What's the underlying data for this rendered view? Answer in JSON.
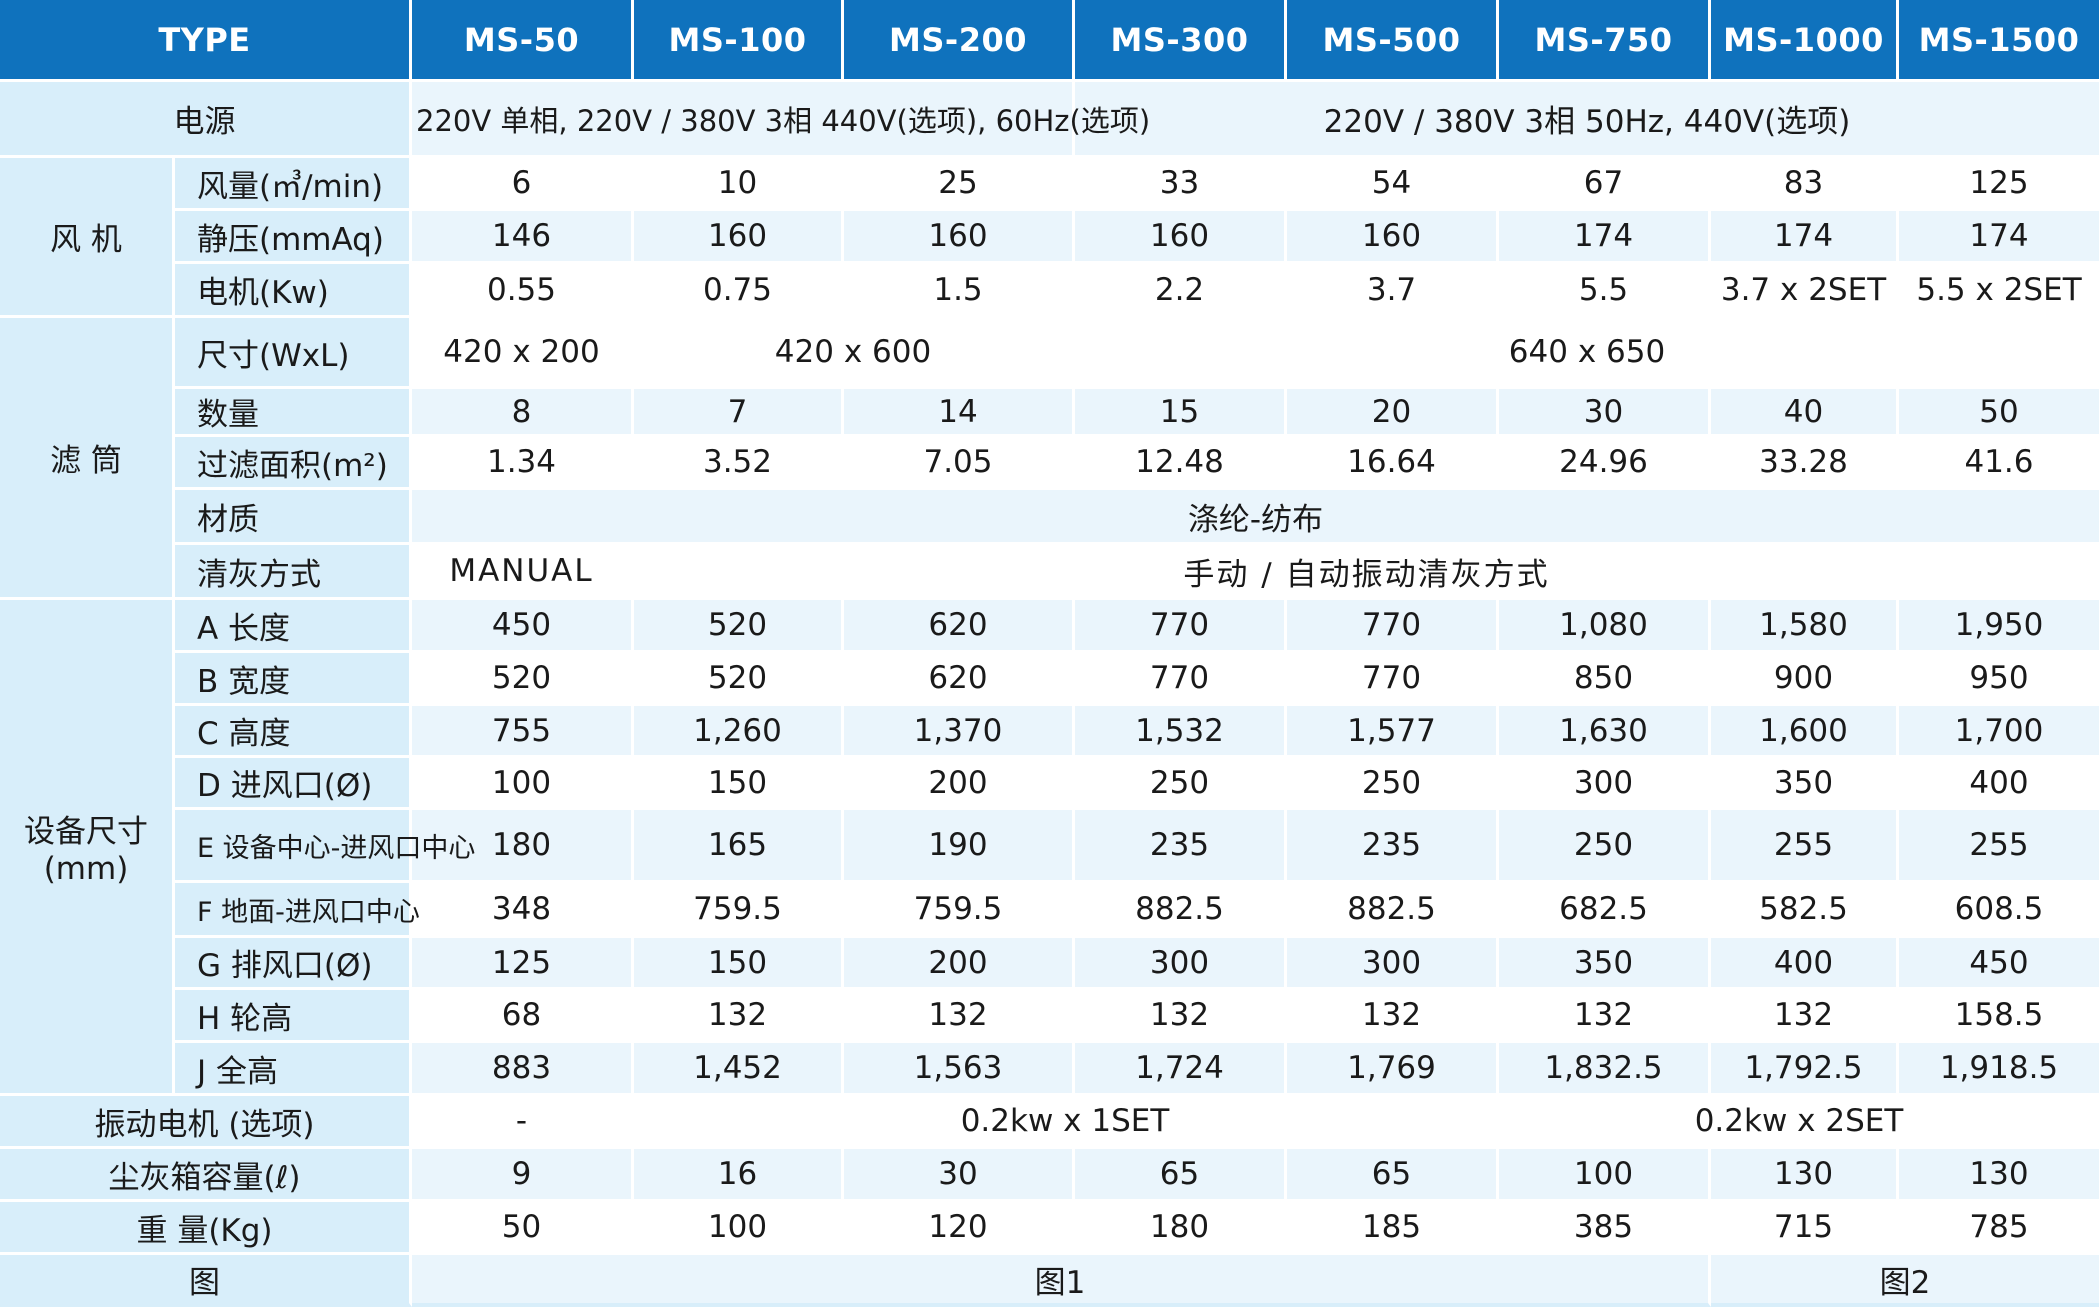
{
  "header": {
    "type_label": "TYPE",
    "models": [
      "MS-50",
      "MS-100",
      "MS-200",
      "MS-300",
      "MS-500",
      "MS-750",
      "MS-1000",
      "MS-1500"
    ]
  },
  "power": {
    "label": "电源",
    "value_a": "220V 单相, 220V / 380V 3相 440V(选项), 60Hz(选项)",
    "value_b": "220V / 380V 3相 50Hz, 440V(选项)"
  },
  "fan": {
    "group_label": "风 机",
    "rows": [
      {
        "label": "风量(㎥/min)",
        "values": [
          "6",
          "10",
          "25",
          "33",
          "54",
          "67",
          "83",
          "125"
        ]
      },
      {
        "label": "静压(mmAq)",
        "values": [
          "146",
          "160",
          "160",
          "160",
          "160",
          "174",
          "174",
          "174"
        ]
      },
      {
        "label": "电机(Kw)",
        "values": [
          "0.55",
          "0.75",
          "1.5",
          "2.2",
          "3.7",
          "5.5",
          "3.7 x 2SET",
          "5.5 x 2SET"
        ]
      }
    ]
  },
  "filter": {
    "group_label": "滤 筒",
    "size_label": "尺寸(WxL)",
    "size_values": [
      "420 x 200",
      "420 x 600",
      "640 x 650"
    ],
    "count_label": "数量",
    "count_values": [
      "8",
      "7",
      "14",
      "15",
      "20",
      "30",
      "40",
      "50"
    ],
    "area_label": "过滤面积(m²)",
    "area_values": [
      "1.34",
      "3.52",
      "7.05",
      "12.48",
      "16.64",
      "24.96",
      "33.28",
      "41.6"
    ],
    "material_label": "材质",
    "material_value": "涤纶-纺布",
    "cleaning_label": "清灰方式",
    "cleaning_values": [
      "MANUAL",
      "手动 / 自动振动清灰方式"
    ]
  },
  "dimensions": {
    "group_label": "设备尺寸",
    "group_unit": "(mm)",
    "rows": [
      {
        "label": "A 长度",
        "values": [
          "450",
          "520",
          "620",
          "770",
          "770",
          "1,080",
          "1,580",
          "1,950"
        ]
      },
      {
        "label": "B 宽度",
        "values": [
          "520",
          "520",
          "620",
          "770",
          "770",
          "850",
          "900",
          "950"
        ]
      },
      {
        "label": "C 高度",
        "values": [
          "755",
          "1,260",
          "1,370",
          "1,532",
          "1,577",
          "1,630",
          "1,600",
          "1,700"
        ]
      },
      {
        "label": "D 进风口(Ø)",
        "values": [
          "100",
          "150",
          "200",
          "250",
          "250",
          "300",
          "350",
          "400"
        ]
      },
      {
        "label": "E 设备中心-进风口中心",
        "values": [
          "180",
          "165",
          "190",
          "235",
          "235",
          "250",
          "255",
          "255"
        ]
      },
      {
        "label": "F 地面-进风口中心",
        "values": [
          "348",
          "759.5",
          "759.5",
          "882.5",
          "882.5",
          "682.5",
          "582.5",
          "608.5"
        ]
      },
      {
        "label": "G 排风口(Ø)",
        "values": [
          "125",
          "150",
          "200",
          "300",
          "300",
          "350",
          "400",
          "450"
        ]
      },
      {
        "label": "H 轮高",
        "values": [
          "68",
          "132",
          "132",
          "132",
          "132",
          "132",
          "132",
          "158.5"
        ]
      },
      {
        "label": "J 全高",
        "values": [
          "883",
          "1,452",
          "1,563",
          "1,724",
          "1,769",
          "1,832.5",
          "1,792.5",
          "1,918.5"
        ]
      }
    ]
  },
  "vibration": {
    "label": "振动电机 (选项)",
    "values": [
      "-",
      "0.2kw x 1SET",
      "0.2kw x 2SET"
    ]
  },
  "dust_box": {
    "label": "尘灰箱容量(ℓ)",
    "values": [
      "9",
      "16",
      "30",
      "65",
      "65",
      "100",
      "130",
      "130"
    ]
  },
  "weight": {
    "label": "重 量(Kg)",
    "values": [
      "50",
      "100",
      "120",
      "180",
      "185",
      "385",
      "715",
      "785"
    ]
  },
  "figure": {
    "label": "图",
    "values": [
      "图1",
      "图2"
    ]
  },
  "colors": {
    "header_bg": "#0f72bd",
    "label_bg": "#d8eefa",
    "alt_row_bg": "#eaf5fc"
  }
}
